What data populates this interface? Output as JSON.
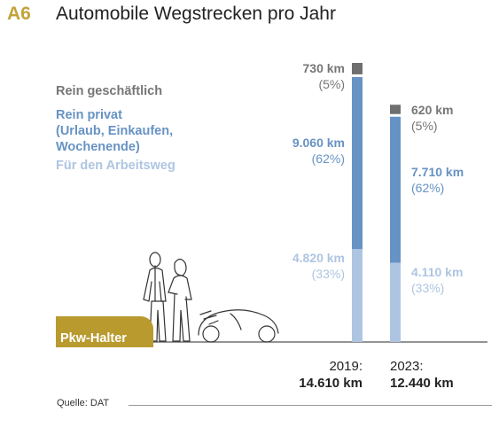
{
  "header": {
    "tag": "A6",
    "title": "Automobile Wegstrecken pro Jahr"
  },
  "legend": {
    "business": "Rein geschäftlich",
    "private_lines": [
      "Rein privat",
      "(Urlaub, Einkaufen,",
      "Wochenende)"
    ],
    "commute": "Für den Arbeitsweg"
  },
  "badge": {
    "label": "Pkw-Halter"
  },
  "source": "Quelle: DAT",
  "colors": {
    "business": "#6f6f6f",
    "private": "#6793c4",
    "commute": "#aec5e1",
    "gold": "#b99a2f"
  },
  "chart_data": {
    "type": "bar",
    "stacked": true,
    "categories": [
      "2019",
      "2023"
    ],
    "series": [
      {
        "name": "Für den Arbeitsweg",
        "values": [
          4820,
          4110
        ],
        "labels": [
          "4.820 km",
          "4.110 km"
        ],
        "pct_labels": [
          "(33%)",
          "(33%)"
        ]
      },
      {
        "name": "Rein privat (Urlaub, Einkaufen, Wochenende)",
        "values": [
          9060,
          7710
        ],
        "labels": [
          "9.060 km",
          "7.710 km"
        ],
        "pct_labels": [
          "(62%)",
          "(62%)"
        ]
      },
      {
        "name": "Rein geschäftlich",
        "values": [
          730,
          620
        ],
        "labels": [
          "730 km",
          "620 km"
        ],
        "pct_labels": [
          "(5%)",
          "(5%)"
        ]
      }
    ],
    "year_labels": [
      "2019:",
      "2023:"
    ],
    "totals": [
      14610,
      12440
    ],
    "total_labels": [
      "14.610 km",
      "12.440 km"
    ],
    "unit": "km"
  }
}
